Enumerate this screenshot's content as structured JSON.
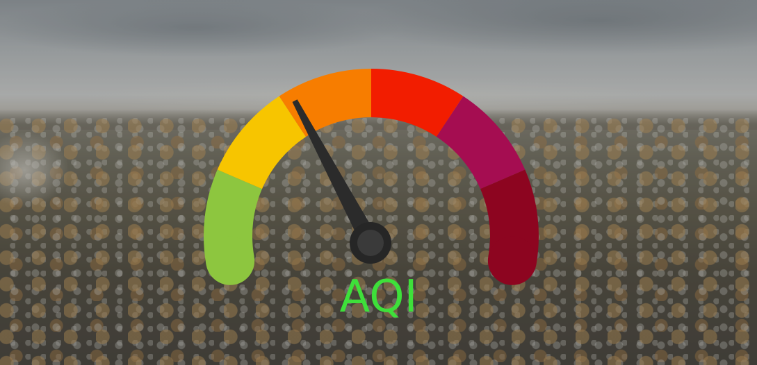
{
  "label": "AQI",
  "label_color": "#3ee03a",
  "gauge": {
    "segments": [
      {
        "color": "#8dc63f"
      },
      {
        "color": "#f7c500"
      },
      {
        "color": "#f77d00"
      },
      {
        "color": "#f21d00"
      },
      {
        "color": "#a50d51"
      },
      {
        "color": "#8d0520"
      }
    ],
    "needle_level": 0.36,
    "needle_color": "#2b2b2b"
  }
}
